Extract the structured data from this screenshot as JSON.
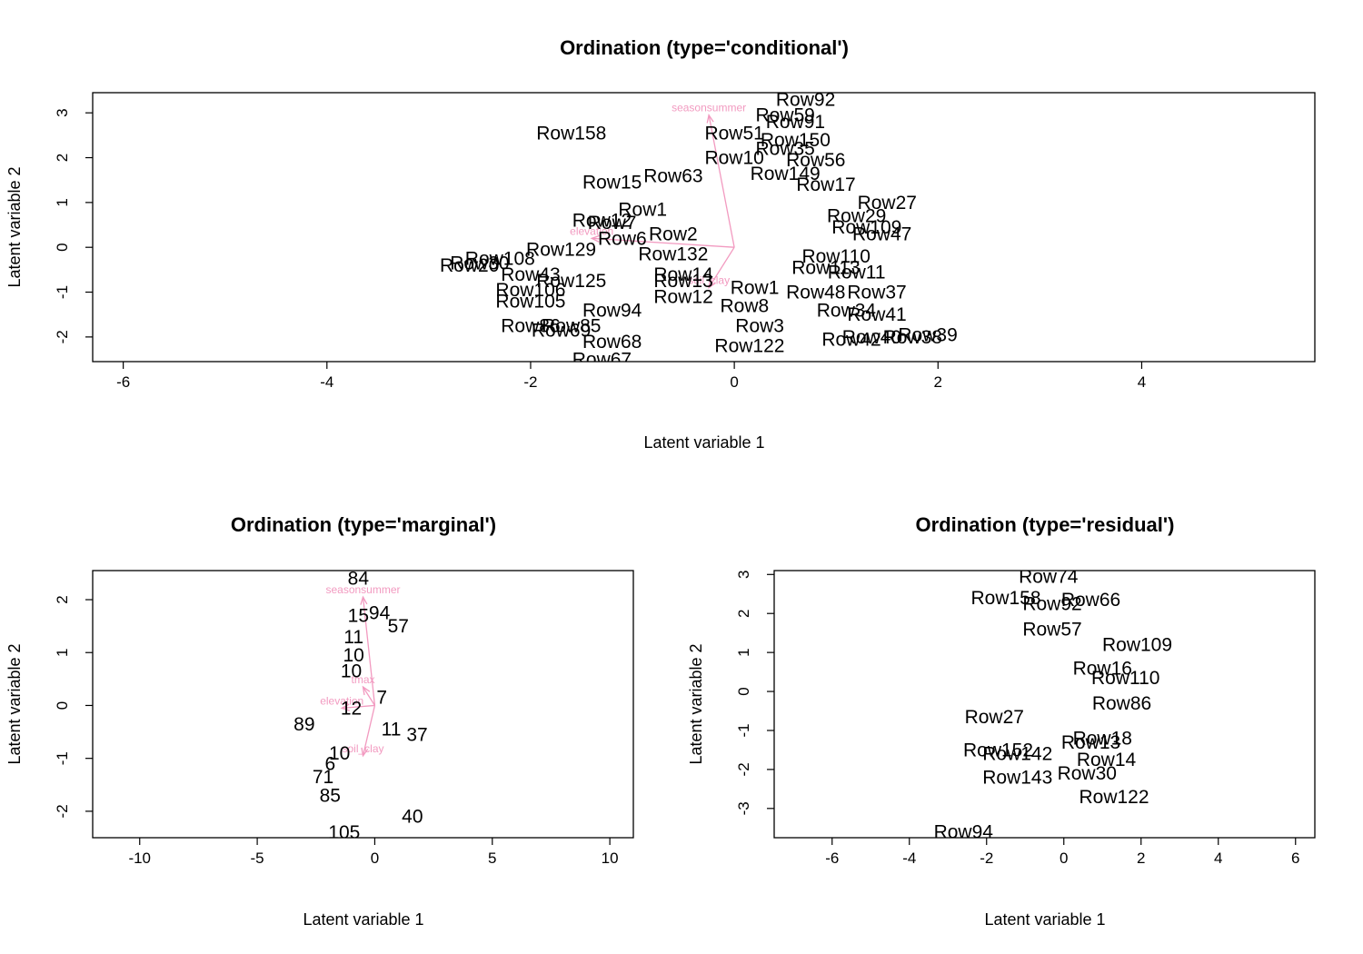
{
  "chart_data": [
    {
      "type": "scatter",
      "title": "Ordination (type='conditional')",
      "xlabel": "Latent variable 1",
      "ylabel": "Latent variable 2",
      "xlim": [
        -6.3,
        5.7
      ],
      "ylim": [
        -2.55,
        3.45
      ],
      "xticks": [
        -6,
        -4,
        -2,
        0,
        2,
        4
      ],
      "yticks": [
        -2,
        -1,
        0,
        1,
        2,
        3
      ],
      "grid": false,
      "points": [
        {
          "label": "Row92",
          "x": 0.7,
          "y": 3.3
        },
        {
          "label": "Row59",
          "x": 0.5,
          "y": 2.95
        },
        {
          "label": "Row91",
          "x": 0.6,
          "y": 2.8
        },
        {
          "label": "Row158",
          "x": -1.6,
          "y": 2.55
        },
        {
          "label": "Row51",
          "x": 0.0,
          "y": 2.55
        },
        {
          "label": "Row150",
          "x": 0.6,
          "y": 2.4
        },
        {
          "label": "Row35",
          "x": 0.5,
          "y": 2.2
        },
        {
          "label": "Row56",
          "x": 0.8,
          "y": 1.95
        },
        {
          "label": "Row10",
          "x": 0.0,
          "y": 2.0
        },
        {
          "label": "Row149",
          "x": 0.5,
          "y": 1.65
        },
        {
          "label": "Row17",
          "x": 0.9,
          "y": 1.4
        },
        {
          "label": "Row15",
          "x": -1.2,
          "y": 1.45
        },
        {
          "label": "Row63",
          "x": -0.6,
          "y": 1.6
        },
        {
          "label": "Row27",
          "x": 1.5,
          "y": 1.0
        },
        {
          "label": "Row29",
          "x": 1.2,
          "y": 0.7
        },
        {
          "label": "Row109",
          "x": 1.3,
          "y": 0.45
        },
        {
          "label": "Row47",
          "x": 1.45,
          "y": 0.3
        },
        {
          "label": "Row1",
          "x": -0.9,
          "y": 0.85
        },
        {
          "label": "Row7",
          "x": -1.2,
          "y": 0.55
        },
        {
          "label": "Row12",
          "x": -1.3,
          "y": 0.6
        },
        {
          "label": "Row6",
          "x": -1.1,
          "y": 0.2
        },
        {
          "label": "Row2",
          "x": -0.6,
          "y": 0.3
        },
        {
          "label": "Row129",
          "x": -1.7,
          "y": -0.05
        },
        {
          "label": "Row132",
          "x": -0.6,
          "y": -0.15
        },
        {
          "label": "Row108",
          "x": -2.3,
          "y": -0.25
        },
        {
          "label": "Row30",
          "x": -2.5,
          "y": -0.35
        },
        {
          "label": "Row20",
          "x": -2.6,
          "y": -0.4
        },
        {
          "label": "Row110",
          "x": 1.0,
          "y": -0.2
        },
        {
          "label": "Row113",
          "x": 0.9,
          "y": -0.45
        },
        {
          "label": "Row11",
          "x": 1.2,
          "y": -0.55
        },
        {
          "label": "Row14",
          "x": -0.5,
          "y": -0.6
        },
        {
          "label": "Row13",
          "x": -0.5,
          "y": -0.75
        },
        {
          "label": "Row43",
          "x": -2.0,
          "y": -0.6
        },
        {
          "label": "Row125",
          "x": -1.6,
          "y": -0.75
        },
        {
          "label": "Row106",
          "x": -2.0,
          "y": -0.95
        },
        {
          "label": "Row1",
          "x": 0.2,
          "y": -0.9
        },
        {
          "label": "Row48",
          "x": 0.8,
          "y": -1.0
        },
        {
          "label": "Row37",
          "x": 1.4,
          "y": -1.0
        },
        {
          "label": "Row12",
          "x": -0.5,
          "y": -1.1
        },
        {
          "label": "Row105",
          "x": -2.0,
          "y": -1.2
        },
        {
          "label": "Row8",
          "x": 0.1,
          "y": -1.3
        },
        {
          "label": "Row94",
          "x": -1.2,
          "y": -1.4
        },
        {
          "label": "Row41",
          "x": 1.4,
          "y": -1.5
        },
        {
          "label": "Row34",
          "x": 1.1,
          "y": -1.4
        },
        {
          "label": "Row86",
          "x": -2.0,
          "y": -1.75
        },
        {
          "label": "Row85",
          "x": -1.6,
          "y": -1.75
        },
        {
          "label": "Row69",
          "x": -1.7,
          "y": -1.85
        },
        {
          "label": "Row3",
          "x": 0.25,
          "y": -1.75
        },
        {
          "label": "Row39",
          "x": 1.9,
          "y": -1.95
        },
        {
          "label": "Row38",
          "x": 1.75,
          "y": -2.0
        },
        {
          "label": "Row40",
          "x": 1.35,
          "y": -2.0
        },
        {
          "label": "Row42",
          "x": 1.15,
          "y": -2.05
        },
        {
          "label": "Row68",
          "x": -1.2,
          "y": -2.1
        },
        {
          "label": "Row122",
          "x": 0.15,
          "y": -2.2
        },
        {
          "label": "Row67",
          "x": -1.3,
          "y": -2.5
        }
      ],
      "arrows": [
        {
          "label": "seasonsummer",
          "x": -0.25,
          "y": 2.95
        },
        {
          "label": "elevation",
          "x": -1.4,
          "y": 0.2
        },
        {
          "label": "soil_clay",
          "x": -0.25,
          "y": -0.9
        }
      ]
    },
    {
      "type": "scatter",
      "title": "Ordination (type='marginal')",
      "xlabel": "Latent variable 1",
      "ylabel": "Latent variable 2",
      "xlim": [
        -12,
        11
      ],
      "ylim": [
        -2.5,
        2.55
      ],
      "xticks": [
        -10,
        -5,
        0,
        5,
        10
      ],
      "yticks": [
        -2,
        -1,
        0,
        1,
        2
      ],
      "grid": false,
      "points": [
        {
          "label": "84",
          "x": -0.7,
          "y": 2.4
        },
        {
          "label": "94",
          "x": 0.2,
          "y": 1.75
        },
        {
          "label": "15",
          "x": -0.7,
          "y": 1.7
        },
        {
          "label": "57",
          "x": 1.0,
          "y": 1.5
        },
        {
          "label": "11",
          "x": -0.9,
          "y": 1.3
        },
        {
          "label": "10",
          "x": -0.9,
          "y": 0.95
        },
        {
          "label": "10",
          "x": -1.0,
          "y": 0.65
        },
        {
          "label": "7",
          "x": 0.3,
          "y": 0.15
        },
        {
          "label": "12",
          "x": -1.0,
          "y": -0.05
        },
        {
          "label": "89",
          "x": -3.0,
          "y": -0.35
        },
        {
          "label": "11",
          "x": 0.7,
          "y": -0.45
        },
        {
          "label": "37",
          "x": 1.8,
          "y": -0.55
        },
        {
          "label": "10",
          "x": -1.5,
          "y": -0.9
        },
        {
          "label": "6",
          "x": -1.9,
          "y": -1.1
        },
        {
          "label": "71",
          "x": -2.2,
          "y": -1.35
        },
        {
          "label": "85",
          "x": -1.9,
          "y": -1.7
        },
        {
          "label": "40",
          "x": 1.6,
          "y": -2.1
        },
        {
          "label": "105",
          "x": -1.3,
          "y": -2.4
        }
      ],
      "arrows": [
        {
          "label": "seasonsummer",
          "x": -0.5,
          "y": 2.05
        },
        {
          "label": "elevation",
          "x": -1.4,
          "y": -0.05
        },
        {
          "label": "tmax",
          "x": -0.5,
          "y": 0.35
        },
        {
          "label": "soil_clay",
          "x": -0.5,
          "y": -0.95
        }
      ]
    },
    {
      "type": "scatter",
      "title": "Ordination (type='residual')",
      "xlabel": "Latent variable 1",
      "ylabel": "Latent variable 2",
      "xlim": [
        -7.5,
        6.5
      ],
      "ylim": [
        -3.75,
        3.1
      ],
      "xticks": [
        -6,
        -4,
        -2,
        0,
        2,
        4,
        6
      ],
      "yticks": [
        -3,
        -2,
        -1,
        0,
        1,
        2,
        3
      ],
      "grid": false,
      "points": [
        {
          "label": "Row74",
          "x": -0.4,
          "y": 2.95
        },
        {
          "label": "Row158",
          "x": -1.5,
          "y": 2.4
        },
        {
          "label": "Row66",
          "x": 0.7,
          "y": 2.35
        },
        {
          "label": "Row92",
          "x": -0.3,
          "y": 2.25
        },
        {
          "label": "Row57",
          "x": -0.3,
          "y": 1.6
        },
        {
          "label": "Row109",
          "x": 1.9,
          "y": 1.2
        },
        {
          "label": "Row16",
          "x": 1.0,
          "y": 0.6
        },
        {
          "label": "Row110",
          "x": 1.6,
          "y": 0.35
        },
        {
          "label": "Row86",
          "x": 1.5,
          "y": -0.3
        },
        {
          "label": "Row27",
          "x": -1.8,
          "y": -0.65
        },
        {
          "label": "Row18",
          "x": 1.0,
          "y": -1.2
        },
        {
          "label": "Row13",
          "x": 0.7,
          "y": -1.3
        },
        {
          "label": "Row152",
          "x": -1.7,
          "y": -1.5
        },
        {
          "label": "Row142",
          "x": -1.2,
          "y": -1.6
        },
        {
          "label": "Row14",
          "x": 1.1,
          "y": -1.75
        },
        {
          "label": "Row30",
          "x": 0.6,
          "y": -2.1
        },
        {
          "label": "Row143",
          "x": -1.2,
          "y": -2.2
        },
        {
          "label": "Row122",
          "x": 1.3,
          "y": -2.7
        },
        {
          "label": "Row94",
          "x": -2.6,
          "y": -3.6
        }
      ],
      "arrows": []
    }
  ]
}
